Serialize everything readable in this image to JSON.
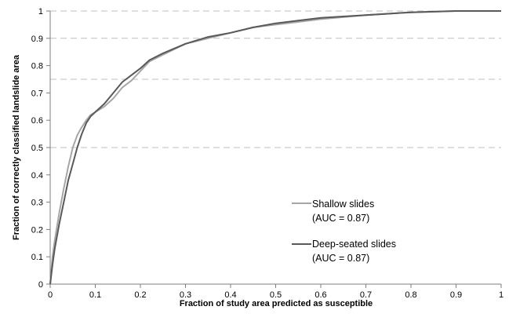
{
  "chart_data": {
    "type": "line",
    "xlabel": "Fraction of  study area predicted as susceptible",
    "ylabel": "Fraction of  correctly classified  landslide area",
    "xlim": [
      0,
      1
    ],
    "ylim": [
      0,
      1
    ],
    "x_ticks": [
      "0",
      "0.1",
      "0.2",
      "0.3",
      "0.4",
      "0.5",
      "0.6",
      "0.7",
      "0.8",
      "0.9",
      "1"
    ],
    "y_ticks": [
      "0",
      "0.1",
      "0.2",
      "0.3",
      "0.4",
      "0.5",
      "0.6",
      "0.7",
      "0.8",
      "0.9",
      "1"
    ],
    "gridlines_y": [
      0.5,
      0.75,
      0.9,
      1.0
    ],
    "legend_position": "right",
    "series": [
      {
        "name": "Shallow slides",
        "auc_label": "(AUC = 0.87)",
        "color": "#a6a6a6",
        "x": [
          0,
          0.005,
          0.01,
          0.02,
          0.03,
          0.04,
          0.05,
          0.06,
          0.07,
          0.08,
          0.09,
          0.1,
          0.12,
          0.14,
          0.16,
          0.18,
          0.2,
          0.22,
          0.25,
          0.3,
          0.35,
          0.4,
          0.45,
          0.5,
          0.6,
          0.7,
          0.8,
          0.9,
          1.0
        ],
        "y": [
          0,
          0.1,
          0.16,
          0.26,
          0.35,
          0.43,
          0.5,
          0.545,
          0.575,
          0.6,
          0.62,
          0.63,
          0.65,
          0.68,
          0.72,
          0.745,
          0.78,
          0.815,
          0.84,
          0.88,
          0.9,
          0.92,
          0.94,
          0.95,
          0.97,
          0.985,
          0.995,
          1.0,
          1.0
        ]
      },
      {
        "name": "Deep-seated slides",
        "auc_label": "(AUC = 0.87)",
        "color": "#595959",
        "x": [
          0,
          0.005,
          0.01,
          0.02,
          0.03,
          0.04,
          0.05,
          0.06,
          0.07,
          0.08,
          0.09,
          0.1,
          0.12,
          0.14,
          0.16,
          0.18,
          0.2,
          0.22,
          0.25,
          0.3,
          0.35,
          0.4,
          0.45,
          0.5,
          0.6,
          0.7,
          0.8,
          0.9,
          1.0
        ],
        "y": [
          0,
          0.07,
          0.13,
          0.22,
          0.3,
          0.38,
          0.44,
          0.5,
          0.55,
          0.59,
          0.615,
          0.63,
          0.66,
          0.7,
          0.74,
          0.765,
          0.79,
          0.82,
          0.845,
          0.88,
          0.905,
          0.92,
          0.94,
          0.955,
          0.975,
          0.985,
          0.995,
          1.0,
          1.0
        ]
      }
    ]
  }
}
